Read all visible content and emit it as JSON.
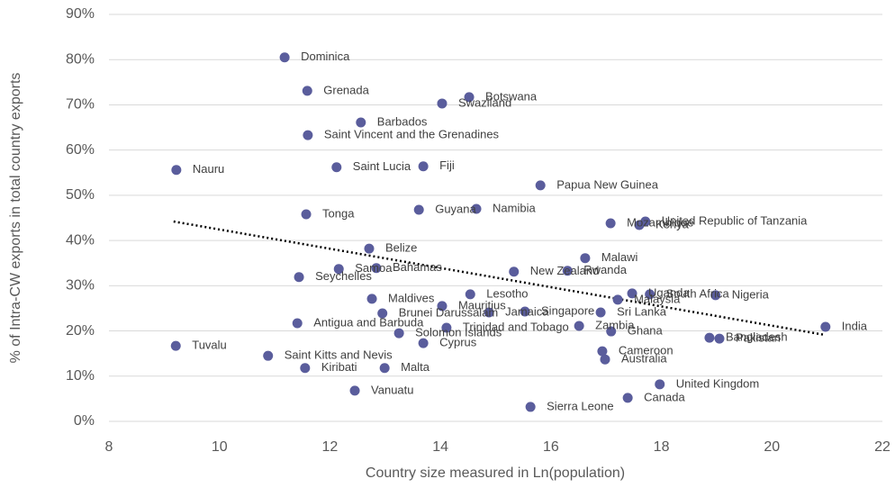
{
  "chart_data": {
    "type": "scatter",
    "x_label": "Country size measured in Ln(population)",
    "y_label": "% of Intra-CW exports in total country exports",
    "color": "#5a5d9c",
    "grid": true,
    "xlim": [
      8,
      22
    ],
    "xticks": [
      8,
      10,
      12,
      14,
      16,
      18,
      20,
      22
    ],
    "ylim": [
      0,
      90
    ],
    "yticks": [
      {
        "value": 0,
        "label": "0%"
      },
      {
        "value": 10,
        "label": "10%"
      },
      {
        "value": 20,
        "label": "20%"
      },
      {
        "value": 30,
        "label": "30%"
      },
      {
        "value": 40,
        "label": "40%"
      },
      {
        "value": 50,
        "label": "50%"
      },
      {
        "value": 60,
        "label": "60%"
      },
      {
        "value": 70,
        "label": "70%"
      },
      {
        "value": 80,
        "label": "80%"
      },
      {
        "value": 90,
        "label": "90%"
      }
    ],
    "point_labels": [
      "Dominica",
      "Grenada",
      "Botswana",
      "Swaziland",
      "Barbados",
      "Saint Vincent and the Grenadines",
      "Saint Lucia",
      "Fiji",
      "Nauru",
      "Papua New Guinea",
      "Tonga",
      "Guyana",
      "Namibia",
      "Mozambique",
      "Kenya",
      "United Republic of Tanzania",
      "Belize",
      "Malawi",
      "Samoa",
      "Bahamas",
      "New Zealand",
      "Rwanda",
      "Seychelles",
      "Uganda",
      "South Africa",
      "Nigeria",
      "Malaysia",
      "Maldives",
      "Lesotho",
      "Mauritius",
      "Sri Lanka",
      "Brunei Darussalam",
      "Jamaica",
      "Singapore",
      "Antigua and Barbuda",
      "Zambia",
      "Trinidad and Tobago",
      "Solomon Islands",
      "Ghana",
      "India",
      "Bangladesh",
      "Pakistan",
      "Cyprus",
      "Tuvalu",
      "Cameroon",
      "Saint Kitts and Nevis",
      "Australia",
      "Kiribati",
      "Malta",
      "United Kingdom",
      "Vanuatu",
      "Canada",
      "Sierra Leone"
    ],
    "x": [
      11.18,
      11.59,
      14.52,
      14.03,
      12.56,
      11.6,
      12.12,
      13.69,
      9.22,
      15.81,
      11.57,
      13.61,
      14.65,
      17.08,
      17.6,
      17.71,
      12.71,
      16.62,
      12.16,
      12.84,
      15.33,
      16.3,
      11.44,
      17.47,
      17.79,
      18.98,
      17.21,
      12.76,
      14.54,
      14.03,
      16.9,
      12.95,
      14.88,
      15.53,
      11.41,
      16.51,
      14.11,
      13.25,
      17.09,
      20.97,
      18.87,
      19.05,
      13.69,
      9.21,
      16.93,
      10.88,
      16.98,
      11.55,
      12.99,
      17.97,
      12.45,
      17.39,
      15.63
    ],
    "values": [
      80.5,
      73.1,
      71.7,
      70.3,
      66.1,
      63.3,
      56.2,
      56.4,
      55.6,
      52.2,
      45.8,
      46.8,
      47.0,
      43.8,
      43.4,
      44.2,
      38.2,
      36.1,
      33.7,
      33.9,
      33.1,
      33.3,
      31.9,
      28.3,
      28.1,
      27.9,
      26.9,
      27.1,
      28.1,
      25.5,
      24.1,
      23.9,
      24.1,
      24.3,
      21.7,
      21.1,
      20.7,
      19.5,
      19.9,
      20.9,
      18.5,
      18.3,
      17.3,
      16.7,
      15.5,
      14.5,
      13.7,
      11.8,
      11.8,
      8.2,
      6.8,
      5.2,
      3.2
    ],
    "trendline": {
      "x": [
        9.17,
        20.97
      ],
      "values": [
        44.2,
        19.1
      ]
    }
  }
}
